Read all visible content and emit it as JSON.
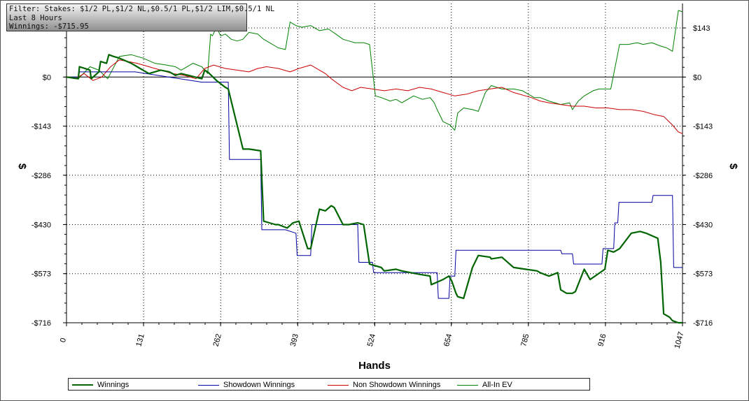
{
  "filter": {
    "line1": "Filter: Stakes: $1/2 PL,$1/2 NL,$0.5/1 PL,$1/2 LIM,$0.5/1 NL",
    "line2": "Last 8 Hours",
    "line3": "Winnings: -$715.95"
  },
  "chart_data": {
    "type": "line",
    "xlabel": "Hands",
    "ylabel": "$",
    "xlim": [
      0,
      1047
    ],
    "ylim": [
      -716,
      143
    ],
    "x_ticks": [
      "0",
      "131",
      "262",
      "393",
      "524",
      "654",
      "785",
      "916",
      "1047"
    ],
    "y_ticks": [
      {
        "value": 143,
        "label": "$143"
      },
      {
        "value": 0,
        "label": "$0"
      },
      {
        "value": -143,
        "label": "-$143"
      },
      {
        "value": -286,
        "label": "-$286"
      },
      {
        "value": -430,
        "label": "-$430"
      },
      {
        "value": -573,
        "label": "-$573"
      },
      {
        "value": -716,
        "label": "-$716"
      }
    ],
    "grid": true,
    "legend_position": "bottom",
    "series": [
      {
        "name": "Winnings",
        "color": "#006400",
        "x": [
          0,
          20,
          22,
          40,
          42,
          55,
          58,
          68,
          72,
          80,
          90,
          110,
          125,
          140,
          160,
          175,
          185,
          195,
          230,
          235,
          240,
          255,
          270,
          275,
          300,
          310,
          330,
          335,
          345,
          355,
          360,
          375,
          385,
          395,
          410,
          415,
          430,
          440,
          450,
          455,
          470,
          480,
          495,
          505,
          515,
          525,
          535,
          540,
          560,
          570,
          600,
          618,
          620,
          640,
          650,
          655,
          662,
          665,
          675,
          690,
          700,
          720,
          722,
          740,
          760,
          780,
          800,
          805,
          820,
          835,
          840,
          850,
          860,
          865,
          880,
          890,
          915,
          920,
          930,
          940,
          960,
          975,
          985,
          1005,
          1010,
          1015,
          1025,
          1030,
          1040,
          1047
        ],
        "values": [
          0,
          -5,
          30,
          20,
          -5,
          15,
          45,
          40,
          65,
          60,
          55,
          40,
          25,
          10,
          20,
          15,
          5,
          10,
          -5,
          20,
          15,
          -10,
          -30,
          -35,
          -210,
          -210,
          -215,
          -420,
          -425,
          -430,
          -430,
          -440,
          -425,
          -420,
          -500,
          -500,
          -385,
          -390,
          -375,
          -380,
          -430,
          -430,
          -425,
          -430,
          -545,
          -550,
          -555,
          -565,
          -560,
          -565,
          -575,
          -580,
          -605,
          -590,
          -580,
          -595,
          -630,
          -640,
          -645,
          -555,
          -520,
          -525,
          -530,
          -525,
          -555,
          -560,
          -565,
          -570,
          -580,
          -570,
          -620,
          -630,
          -630,
          -625,
          -560,
          -590,
          -560,
          -505,
          -510,
          -500,
          -455,
          -450,
          -455,
          -470,
          -540,
          -690,
          -700,
          -710,
          -716,
          -716
        ],
        "values_smoothing_note": ""
      },
      {
        "name": "Showdown Winnings",
        "color": "#0000a0",
        "x": [
          0,
          20,
          22,
          60,
          62,
          115,
          117,
          230,
          232,
          275,
          277,
          295,
          297,
          330,
          332,
          370,
          372,
          390,
          392,
          415,
          417,
          440,
          442,
          460,
          462,
          470,
          472,
          495,
          497,
          520,
          522,
          630,
          632,
          650,
          652,
          660,
          662,
          680,
          682,
          770,
          772,
          840,
          842,
          860,
          862,
          910,
          912,
          930,
          932,
          937,
          939,
          995,
          997,
          1030,
          1032,
          1047
        ],
        "values": [
          0,
          0,
          15,
          15,
          15,
          15,
          15,
          -15,
          -15,
          -15,
          -240,
          -240,
          -240,
          -240,
          -445,
          -445,
          -445,
          -455,
          -520,
          -520,
          -430,
          -430,
          -430,
          -430,
          -430,
          -430,
          -430,
          -430,
          -540,
          -540,
          -570,
          -570,
          -645,
          -645,
          -580,
          -580,
          -505,
          -505,
          -505,
          -505,
          -505,
          -505,
          -515,
          -515,
          -545,
          -545,
          -500,
          -500,
          -425,
          -425,
          -365,
          -365,
          -345,
          -345,
          -555,
          -555
        ]
      },
      {
        "name": "Non Showdown Winnings",
        "color": "#cc0000",
        "x": [
          0,
          15,
          30,
          45,
          60,
          75,
          90,
          105,
          120,
          140,
          160,
          180,
          200,
          220,
          235,
          250,
          270,
          290,
          310,
          325,
          340,
          360,
          380,
          395,
          415,
          430,
          440,
          450,
          470,
          485,
          500,
          520,
          540,
          560,
          580,
          600,
          620,
          640,
          660,
          680,
          700,
          720,
          740,
          760,
          790,
          805,
          820,
          840,
          860,
          880,
          900,
          920,
          940,
          960,
          980,
          1000,
          1015,
          1030,
          1040,
          1047
        ],
        "values": [
          0,
          -5,
          10,
          -10,
          0,
          30,
          50,
          45,
          40,
          30,
          20,
          10,
          5,
          -5,
          25,
          35,
          25,
          20,
          15,
          25,
          30,
          25,
          15,
          25,
          35,
          20,
          10,
          -5,
          -30,
          -40,
          -30,
          -35,
          -40,
          -35,
          -40,
          -30,
          -35,
          -45,
          -55,
          -50,
          -40,
          -35,
          -30,
          -45,
          -60,
          -70,
          -75,
          -80,
          -85,
          -85,
          -90,
          -90,
          -95,
          -95,
          -100,
          -110,
          -115,
          -140,
          -160,
          -165
        ]
      },
      {
        "name": "All-In EV",
        "color": "#008000",
        "x": [
          0,
          20,
          40,
          55,
          70,
          90,
          110,
          130,
          150,
          170,
          185,
          195,
          215,
          230,
          240,
          245,
          248,
          255,
          262,
          270,
          280,
          290,
          300,
          310,
          325,
          335,
          345,
          360,
          372,
          380,
          385,
          390,
          400,
          415,
          430,
          445,
          458,
          470,
          480,
          490,
          497,
          505,
          515,
          525,
          535,
          550,
          560,
          570,
          590,
          605,
          618,
          625,
          630,
          640,
          652,
          660,
          665,
          675,
          690,
          700,
          712,
          722,
          740,
          760,
          775,
          780,
          795,
          805,
          820,
          840,
          855,
          860,
          870,
          880,
          895,
          905,
          915,
          925,
          940,
          955,
          970,
          980,
          995,
          1010,
          1020,
          1030,
          1040,
          1047
        ],
        "values": [
          0,
          -5,
          30,
          20,
          -5,
          60,
          65,
          55,
          40,
          35,
          30,
          20,
          40,
          30,
          10,
          125,
          120,
          145,
          120,
          125,
          110,
          105,
          110,
          130,
          125,
          110,
          100,
          85,
          80,
          160,
          155,
          150,
          145,
          150,
          135,
          140,
          125,
          110,
          105,
          100,
          100,
          100,
          95,
          -55,
          -60,
          -70,
          -65,
          -75,
          -55,
          -65,
          -60,
          -75,
          -95,
          -130,
          -140,
          -155,
          -105,
          -90,
          -95,
          -100,
          -45,
          -25,
          -35,
          -35,
          -40,
          -45,
          -60,
          -60,
          -70,
          -80,
          -75,
          -95,
          -70,
          -55,
          -40,
          -35,
          -35,
          -35,
          95,
          95,
          100,
          95,
          100,
          90,
          85,
          75,
          195,
          190
        ]
      }
    ]
  },
  "legend": {
    "items": [
      {
        "label": "Winnings",
        "color": "#006400",
        "thick": true
      },
      {
        "label": "Showdown Winnings",
        "color": "#0000a0",
        "thick": false
      },
      {
        "label": "Non Showdown Winnings",
        "color": "#cc0000",
        "thick": false
      },
      {
        "label": "All-In EV",
        "color": "#008000",
        "thick": false
      }
    ]
  }
}
